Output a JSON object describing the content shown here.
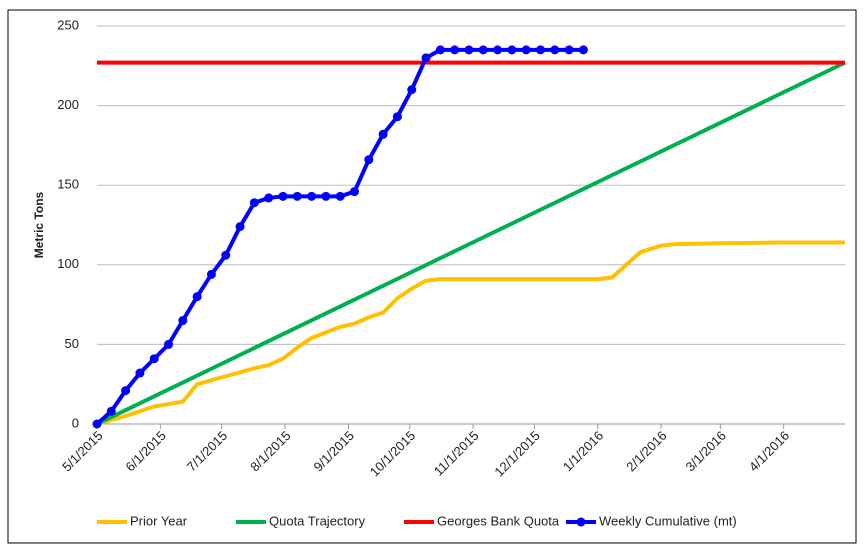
{
  "chart_data": {
    "type": "line",
    "ylabel": "Metric Tons",
    "ylim": [
      0,
      250
    ],
    "yticks": [
      0,
      50,
      100,
      150,
      200,
      250
    ],
    "grid": true,
    "xlim": [
      "2015-05-01",
      "2016-05-01"
    ],
    "xticks": [
      {
        "value": "2015-05-01",
        "label": "5/1/2015"
      },
      {
        "value": "2015-06-01",
        "label": "6/1/2015"
      },
      {
        "value": "2015-07-01",
        "label": "7/1/2015"
      },
      {
        "value": "2015-08-01",
        "label": "8/1/2015"
      },
      {
        "value": "2015-09-01",
        "label": "9/1/2015"
      },
      {
        "value": "2015-10-01",
        "label": "10/1/2015"
      },
      {
        "value": "2015-11-01",
        "label": "11/1/2015"
      },
      {
        "value": "2015-12-01",
        "label": "12/1/2015"
      },
      {
        "value": "2016-01-01",
        "label": "1/1/2016"
      },
      {
        "value": "2016-02-01",
        "label": "2/1/2016"
      },
      {
        "value": "2016-03-01",
        "label": "3/1/2016"
      },
      {
        "value": "2016-04-01",
        "label": "4/1/2016"
      }
    ],
    "legend": "bottom",
    "series": [
      {
        "name": "Prior Year",
        "color": "#ffc000",
        "x": [
          "2015-05-01",
          "2015-05-15",
          "2015-05-29",
          "2015-06-12",
          "2015-06-19",
          "2015-07-03",
          "2015-07-17",
          "2015-07-24",
          "2015-07-31",
          "2015-08-07",
          "2015-08-14",
          "2015-08-28",
          "2015-09-04",
          "2015-09-11",
          "2015-09-18",
          "2015-09-25",
          "2015-10-02",
          "2015-10-09",
          "2015-10-16",
          "2016-01-01",
          "2016-01-08",
          "2016-01-22",
          "2016-02-01",
          "2016-02-08",
          "2016-03-01",
          "2016-04-01",
          "2016-05-01"
        ],
        "values": [
          0,
          5,
          11,
          14,
          25,
          30,
          35,
          37,
          41,
          48,
          54,
          61,
          63,
          67,
          70,
          79,
          85,
          90,
          91,
          91,
          92,
          108,
          112,
          113,
          113.5,
          114,
          114
        ]
      },
      {
        "name": "Quota Trajectory",
        "color": "#00b050",
        "x": [
          "2015-05-01",
          "2016-05-01"
        ],
        "values": [
          0,
          227
        ]
      },
      {
        "name": "Georges Bank Quota",
        "color": "#ff0000",
        "x": [
          "2015-05-01",
          "2016-05-01"
        ],
        "values": [
          227,
          227
        ]
      },
      {
        "name": "Weekly Cumulative (mt)",
        "color": "#0000ff",
        "marker": "circle",
        "x": [
          "2015-05-01",
          "2015-05-08",
          "2015-05-15",
          "2015-05-22",
          "2015-05-29",
          "2015-06-05",
          "2015-06-12",
          "2015-06-19",
          "2015-06-26",
          "2015-07-03",
          "2015-07-10",
          "2015-07-17",
          "2015-07-24",
          "2015-07-31",
          "2015-08-07",
          "2015-08-14",
          "2015-08-21",
          "2015-08-28",
          "2015-09-04",
          "2015-09-11",
          "2015-09-18",
          "2015-09-25",
          "2015-10-02",
          "2015-10-09",
          "2015-10-16",
          "2015-10-23",
          "2015-10-30",
          "2015-11-06",
          "2015-11-13",
          "2015-11-20",
          "2015-11-27",
          "2015-12-04",
          "2015-12-11",
          "2015-12-18",
          "2015-12-25"
        ],
        "values": [
          0,
          8,
          21,
          32,
          41,
          50,
          65,
          80,
          94,
          106,
          124,
          139,
          142,
          143,
          143,
          143,
          143,
          143,
          146,
          166,
          182,
          193,
          210,
          230,
          235,
          235,
          235,
          235,
          235,
          235,
          235,
          235,
          235,
          235,
          235
        ]
      }
    ]
  }
}
